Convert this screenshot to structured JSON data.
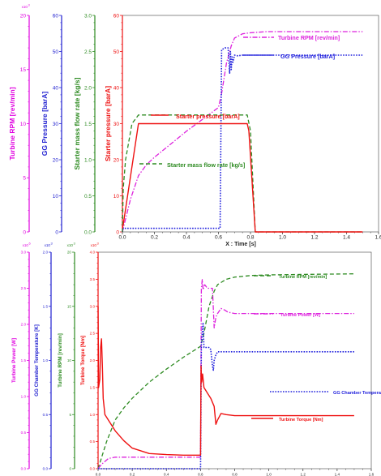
{
  "chart_data": [
    {
      "type": "line",
      "x_range": [
        0,
        1.6
      ],
      "x_ticks": [
        "0.0",
        "0.2",
        "0.4",
        "0.6",
        "0.8",
        "1.0",
        "1.2",
        "1.4",
        "1.6"
      ],
      "xlabel": "X : Time [s]",
      "grid": false,
      "axes": [
        {
          "label": "Turbine RPM [rev/min]",
          "range": [
            0,
            20
          ],
          "ticks": [
            "0",
            "5",
            "10",
            "15",
            "20"
          ],
          "exponent": "x10",
          "exponent_sup": "3",
          "color": "#e000e0"
        },
        {
          "label": "GG Pressure [barA]",
          "range": [
            0,
            60
          ],
          "ticks": [
            "0",
            "10",
            "20",
            "30",
            "40",
            "50",
            "60"
          ],
          "color": "#2020d0"
        },
        {
          "label": "Starter mass flow rate [kg/s]",
          "range": [
            0,
            3
          ],
          "ticks": [
            "0.0",
            "0.5",
            "1.0",
            "1.5",
            "2.0",
            "2.5",
            "3.0"
          ],
          "color": "#2e8b22"
        },
        {
          "label": "Starter pressure [barA]",
          "range": [
            0,
            60
          ],
          "ticks": [
            "0",
            "10",
            "20",
            "30",
            "40",
            "50",
            "60"
          ],
          "color": "#ee1111"
        }
      ],
      "series": [
        {
          "name": "Turbine RPM [rev/min]",
          "axis": 0,
          "color": "#dd22dd",
          "style": "dashdot",
          "x": [
            0,
            0.02,
            0.05,
            0.1,
            0.15,
            0.2,
            0.3,
            0.4,
            0.5,
            0.6,
            0.62,
            0.65,
            0.68,
            0.7,
            0.75,
            0.8,
            0.9,
            1.0,
            1.2,
            1.5
          ],
          "y": [
            0,
            1.2,
            3.0,
            5.2,
            6.2,
            6.9,
            8.1,
            9.3,
            10.4,
            11.5,
            12.8,
            15.6,
            17.2,
            17.9,
            18.3,
            18.4,
            18.5,
            18.5,
            18.5,
            18.5
          ]
        },
        {
          "name": "GG Pressure [barA]",
          "axis": 1,
          "color": "#2222dd",
          "style": "dotted",
          "x": [
            0,
            0.005,
            0.02,
            0.6,
            0.61,
            0.62,
            0.64,
            0.66,
            0.67,
            0.675,
            0.68,
            0.685,
            0.69,
            0.7,
            0.72,
            0.75,
            0.8,
            1.0,
            1.2,
            1.5
          ],
          "y": [
            0,
            1.0,
            1.0,
            1.0,
            1.0,
            50.5,
            51.0,
            51.0,
            44.0,
            50.0,
            45.0,
            48.5,
            47.0,
            49.0,
            48.8,
            49.0,
            49.0,
            49.0,
            49.0,
            49.0
          ]
        },
        {
          "name": "Starter mass flow rate [kg/s]",
          "axis": 2,
          "color": "#2e8b22",
          "style": "dashed",
          "x": [
            0,
            0.005,
            0.02,
            0.06,
            0.1,
            0.12,
            0.78,
            0.8,
            0.83,
            1.0,
            1.5
          ],
          "y": [
            0,
            0.6,
            1.0,
            1.5,
            1.62,
            1.62,
            1.62,
            1.4,
            0,
            0,
            0
          ]
        },
        {
          "name": "Starter pressure [barA]",
          "axis": 3,
          "color": "#ee1111",
          "style": "solid",
          "x": [
            0,
            0.005,
            0.1,
            0.15,
            0.78,
            0.79,
            0.83,
            1.0,
            1.5
          ],
          "y": [
            1.0,
            2.0,
            30,
            30,
            30,
            28,
            0,
            0,
            0
          ]
        }
      ]
    },
    {
      "type": "line",
      "x_range": [
        0,
        1.6
      ],
      "x_ticks": [
        "0.0",
        "0.2",
        "0.4",
        "0.6",
        "0.8",
        "1.0",
        "1.2",
        "1.4",
        "1.6"
      ],
      "xlabel": "",
      "grid": false,
      "axes": [
        {
          "label": "Turbine Power [W]",
          "range": [
            0,
            3.0
          ],
          "ticks": [
            "0.0",
            "0.5",
            "1.0",
            "1.5",
            "2.0",
            "2.5",
            "3.0"
          ],
          "exponent": "x10",
          "exponent_sup": "6",
          "color": "#e000e0"
        },
        {
          "label": "GG Chamber Temperature [K]",
          "range": [
            0,
            2.0
          ],
          "ticks": [
            "0.0",
            "0.5",
            "1.0",
            "1.5",
            "2.0"
          ],
          "exponent": "x10",
          "exponent_sup": "3",
          "color": "#2020d0"
        },
        {
          "label": "Turbine RPM [rev/min]",
          "range": [
            0,
            20
          ],
          "ticks": [
            "0",
            "5",
            "10",
            "15",
            "20"
          ],
          "exponent": "x10",
          "exponent_sup": "3",
          "color": "#2e8b22"
        },
        {
          "label": "Turbine Torque [Nm]",
          "range": [
            0,
            4.0
          ],
          "ticks": [
            "0.0",
            "0.5",
            "1.0",
            "1.5",
            "2.0",
            "2.5",
            "3.0",
            "3.5",
            "4.0"
          ],
          "exponent": "x10",
          "exponent_sup": "3",
          "color": "#ee1111"
        }
      ],
      "series": [
        {
          "name": "Turbine RPM [rev/min]",
          "axis": 2,
          "color": "#2e8b22",
          "style": "dashed",
          "x": [
            0,
            0.02,
            0.05,
            0.1,
            0.15,
            0.2,
            0.3,
            0.4,
            0.5,
            0.6,
            0.62,
            0.65,
            0.68,
            0.7,
            0.75,
            0.8,
            0.9,
            1.0,
            1.2,
            1.5
          ],
          "y": [
            0,
            1.0,
            2.5,
            4.5,
            5.6,
            6.5,
            8.0,
            9.2,
            10.3,
            11.3,
            12.5,
            15.0,
            16.4,
            17.0,
            17.5,
            17.7,
            17.85,
            17.9,
            17.95,
            18.0
          ]
        },
        {
          "name": "Turbine Power [W]",
          "axis": 0,
          "color": "#dd22dd",
          "style": "dashdot",
          "x": [
            0,
            0.02,
            0.06,
            0.1,
            0.3,
            0.6,
            0.605,
            0.61,
            0.615,
            0.625,
            0.64,
            0.67,
            0.68,
            0.69,
            0.7,
            0.72,
            0.74,
            0.76,
            0.8,
            1.0,
            1.5
          ],
          "y": [
            0,
            0.06,
            0.14,
            0.16,
            0.16,
            0.16,
            2.5,
            2.62,
            2.48,
            2.55,
            2.5,
            2.5,
            1.95,
            2.1,
            2.15,
            2.22,
            2.2,
            2.17,
            2.15,
            2.15,
            2.15
          ]
        },
        {
          "name": "GG Chamber Temperature [K]",
          "axis": 1,
          "color": "#2222dd",
          "style": "dotted",
          "x": [
            0,
            0.6,
            0.605,
            0.615,
            0.62,
            0.65,
            0.66,
            0.67,
            0.675,
            0.68,
            0.69,
            0.7,
            0.75,
            0.8,
            1.0,
            1.5
          ],
          "y": [
            0,
            0,
            1.15,
            1.35,
            1.12,
            1.12,
            1.1,
            0.95,
            0.91,
            1.0,
            1.05,
            1.08,
            1.08,
            1.08,
            1.08,
            1.08
          ]
        },
        {
          "name": "Turbine Torque [Nm]",
          "axis": 3,
          "color": "#ee1111",
          "style": "solid",
          "x": [
            0,
            0.003,
            0.01,
            0.015,
            0.02,
            0.025,
            0.03,
            0.04,
            0.06,
            0.1,
            0.15,
            0.2,
            0.3,
            0.4,
            0.5,
            0.6,
            0.603,
            0.607,
            0.612,
            0.62,
            0.64,
            0.66,
            0.68,
            0.69,
            0.7,
            0.72,
            0.75,
            0.8,
            1.0,
            1.5
          ],
          "y": [
            3.0,
            1.5,
            1.65,
            2.25,
            2.4,
            1.9,
            1.3,
            1.0,
            0.9,
            0.7,
            0.52,
            0.38,
            0.28,
            0.26,
            0.25,
            0.25,
            1.9,
            1.6,
            1.75,
            1.5,
            1.4,
            1.3,
            1.15,
            0.82,
            0.9,
            1.02,
            1.0,
            0.98,
            0.98,
            0.98
          ]
        }
      ],
      "legend_labels": [
        "Turbine RPM [rev/min]",
        "Turbine Power [W]",
        "GG Chamber Temperature [K]",
        "Turbine Torque [Nm]"
      ]
    }
  ]
}
